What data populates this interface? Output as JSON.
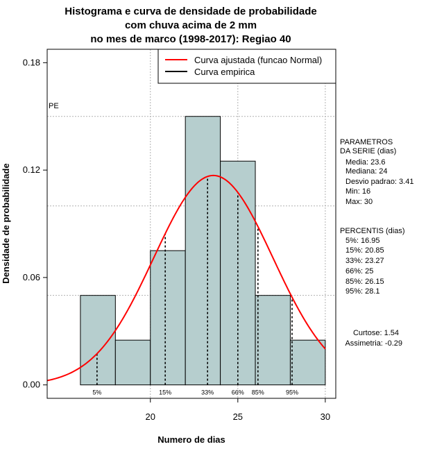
{
  "chart_data": {
    "type": "bar",
    "title_lines": [
      "Histograma e curva de densidade de probabilidade",
      "com chuva acima de 2 mm",
      "no mes de marco (1998-2017): Regiao 40"
    ],
    "xlabel": "Numero de dias",
    "ylabel": "Densidade de probabilidade",
    "xlim": [
      14.1,
      30.6
    ],
    "ylim": [
      -0.0075,
      0.1875
    ],
    "x_ticks": [
      20,
      25,
      30
    ],
    "y_ticks": [
      0.0,
      0.06,
      0.12,
      0.18
    ],
    "y_tick_labels": [
      "0.00",
      "0.06",
      "0.12",
      "0.18"
    ],
    "bins": [
      {
        "start": 16,
        "end": 18,
        "density": 0.05
      },
      {
        "start": 18,
        "end": 20,
        "density": 0.025
      },
      {
        "start": 20,
        "end": 22,
        "density": 0.075
      },
      {
        "start": 22,
        "end": 24,
        "density": 0.15
      },
      {
        "start": 24,
        "end": 26,
        "density": 0.125
      },
      {
        "start": 26,
        "end": 28,
        "density": 0.05
      },
      {
        "start": 28,
        "end": 30,
        "density": 0.025
      }
    ],
    "fit": {
      "name": "Curva ajustada (funcao Normal)",
      "mean": 23.6,
      "sd": 3.41,
      "color": "#ff0000"
    },
    "empirical": {
      "name": "Curva empirica",
      "color": "#000000"
    },
    "percentile_markers": [
      {
        "label": "5%",
        "x": 16.95
      },
      {
        "label": "15%",
        "x": 20.85
      },
      {
        "label": "33%",
        "x": 23.27
      },
      {
        "label": "66%",
        "x": 25
      },
      {
        "label": "85%",
        "x": 26.15
      },
      {
        "label": "95%",
        "x": 28.1
      }
    ],
    "h_gridlines": [
      0.05,
      0.1,
      0.15
    ],
    "pe_label": "PE",
    "bar_color": "#b6cece",
    "legend_position": "top-right"
  },
  "side_panel": {
    "params_title": [
      "PARAMETROS",
      "DA SERIE (dias)"
    ],
    "params": [
      "Media: 23.6",
      "Mediana: 24",
      "Desvio padrao: 3.41",
      "Min: 16",
      "Max: 30"
    ],
    "pct_title": "PERCENTIS (dias)",
    "pcts": [
      "5%: 16.95",
      "15%: 20.85",
      "33%: 23.27",
      "66%: 25",
      "85%: 26.15",
      "95%: 28.1"
    ],
    "shape": [
      "Curtose: 1.54",
      "Assimetria: -0.29"
    ]
  }
}
